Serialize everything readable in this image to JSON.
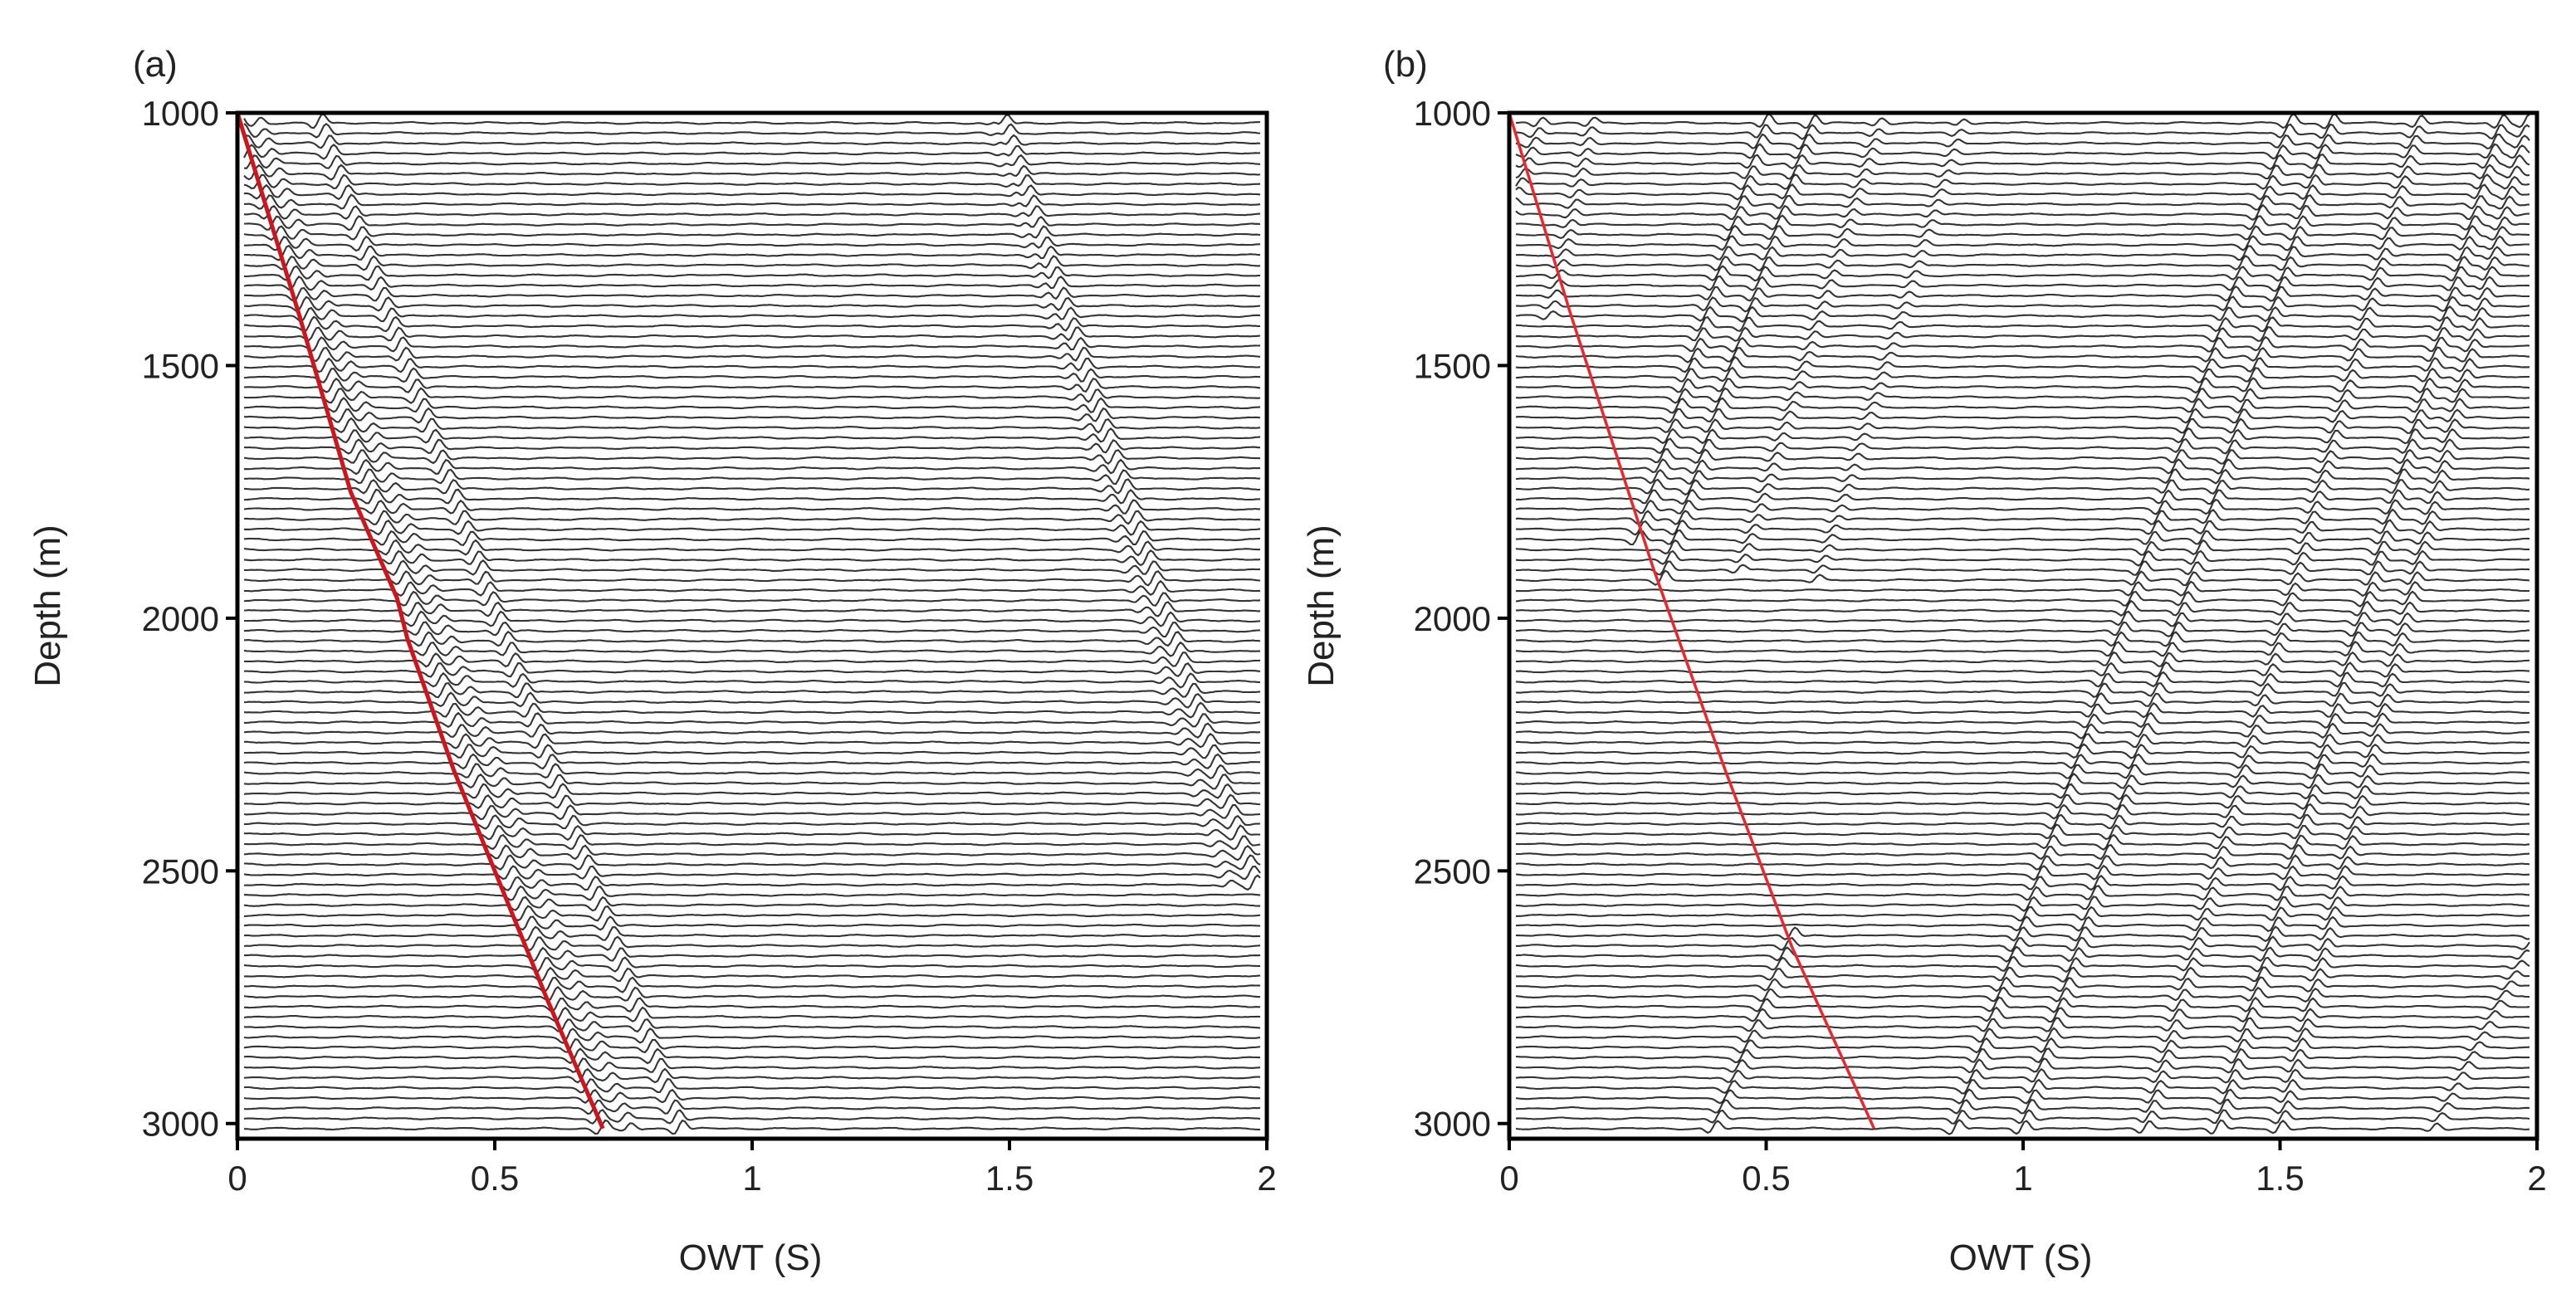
{
  "panels": [
    {
      "panel_label": "(a)",
      "chart_data": {
        "type": "line",
        "xlabel": "OWT (S)",
        "ylabel": "Depth (m)",
        "xlim": [
          0,
          2
        ],
        "ylim": [
          1000,
          3030
        ],
        "y_reversed": true,
        "x_ticks": [
          0,
          0.5,
          1,
          1.5,
          2
        ],
        "x_tick_labels": [
          "0",
          "0.5",
          "1",
          "1.5",
          "2"
        ],
        "y_ticks": [
          1000,
          1500,
          2000,
          2500,
          3000
        ],
        "y_tick_labels": [
          "1000",
          "1500",
          "2000",
          "2500",
          "3000"
        ],
        "first_break_pick": {
          "color": "#d0141b",
          "x": [
            0.0,
            0.12,
            0.22,
            0.31,
            0.33,
            0.42,
            0.5,
            0.6,
            0.71
          ],
          "y": [
            1000,
            1400,
            1750,
            1960,
            2040,
            2300,
            2500,
            2750,
            3010
          ]
        },
        "wave_events": [
          {
            "x": [
              0.0,
              0.71
            ],
            "y": [
              1020,
              3010
            ],
            "strength": 1.0
          },
          {
            "x": [
              0.04,
              0.76
            ],
            "y": [
              1020,
              3010
            ],
            "strength": 0.6
          },
          {
            "x": [
              0.16,
              0.86
            ],
            "y": [
              1020,
              3010
            ],
            "strength": 1.0
          },
          {
            "x": [
              1.49,
              1.98
            ],
            "y": [
              1020,
              2540
            ],
            "strength": 1.0
          },
          {
            "x": [
              1.47,
              1.93
            ],
            "y": [
              1020,
              2540
            ],
            "strength": 0.45
          }
        ]
      }
    },
    {
      "panel_label": "(b)",
      "chart_data": {
        "type": "line",
        "xlabel": "OWT (S)",
        "ylabel": "Depth (m)",
        "xlim": [
          0,
          2
        ],
        "ylim": [
          1000,
          3030
        ],
        "y_reversed": true,
        "x_ticks": [
          0,
          0.5,
          1,
          1.5,
          2
        ],
        "x_tick_labels": [
          "0",
          "0.5",
          "1",
          "1.5",
          "2"
        ],
        "y_ticks": [
          1000,
          1500,
          2000,
          2500,
          3000
        ],
        "y_tick_labels": [
          "1000",
          "1500",
          "2000",
          "2500",
          "3000"
        ],
        "first_break_pick": {
          "color": "#e8282e",
          "x": [
            0.0,
            0.12,
            0.28,
            0.42,
            0.55,
            0.71
          ],
          "y": [
            1000,
            1400,
            1900,
            2300,
            2650,
            3010
          ]
        },
        "wave_events": [
          {
            "x": [
              0.0,
              0.06
            ],
            "y": [
              1200,
              1020
            ],
            "strength": 0.7
          },
          {
            "x": [
              0.08,
              0.16
            ],
            "y": [
              1400,
              1020
            ],
            "strength": 0.6
          },
          {
            "x": [
              0.25,
              0.5
            ],
            "y": [
              1850,
              1020
            ],
            "strength": 1.0
          },
          {
            "x": [
              0.3,
              0.59
            ],
            "y": [
              1920,
              1020
            ],
            "strength": 1.0
          },
          {
            "x": [
              0.45,
              0.72
            ],
            "y": [
              1900,
              1020
            ],
            "strength": 0.6
          },
          {
            "x": [
              0.6,
              0.88
            ],
            "y": [
              1920,
              1020
            ],
            "strength": 0.5
          },
          {
            "x": [
              0.4,
              0.55
            ],
            "y": [
              3010,
              2630
            ],
            "strength": 0.9
          },
          {
            "x": [
              0.87,
              1.52
            ],
            "y": [
              3010,
              1020
            ],
            "strength": 1.0
          },
          {
            "x": [
              1.0,
              1.6
            ],
            "y": [
              3010,
              1020
            ],
            "strength": 1.0
          },
          {
            "x": [
              1.24,
              1.77
            ],
            "y": [
              3010,
              1020
            ],
            "strength": 0.85
          },
          {
            "x": [
              1.38,
              1.93
            ],
            "y": [
              3010,
              1020
            ],
            "strength": 1.0
          },
          {
            "x": [
              1.5,
              1.98
            ],
            "y": [
              3010,
              1020
            ],
            "strength": 0.9
          },
          {
            "x": [
              1.8,
              2.0
            ],
            "y": [
              3010,
              2620
            ],
            "strength": 0.6
          }
        ]
      }
    }
  ]
}
